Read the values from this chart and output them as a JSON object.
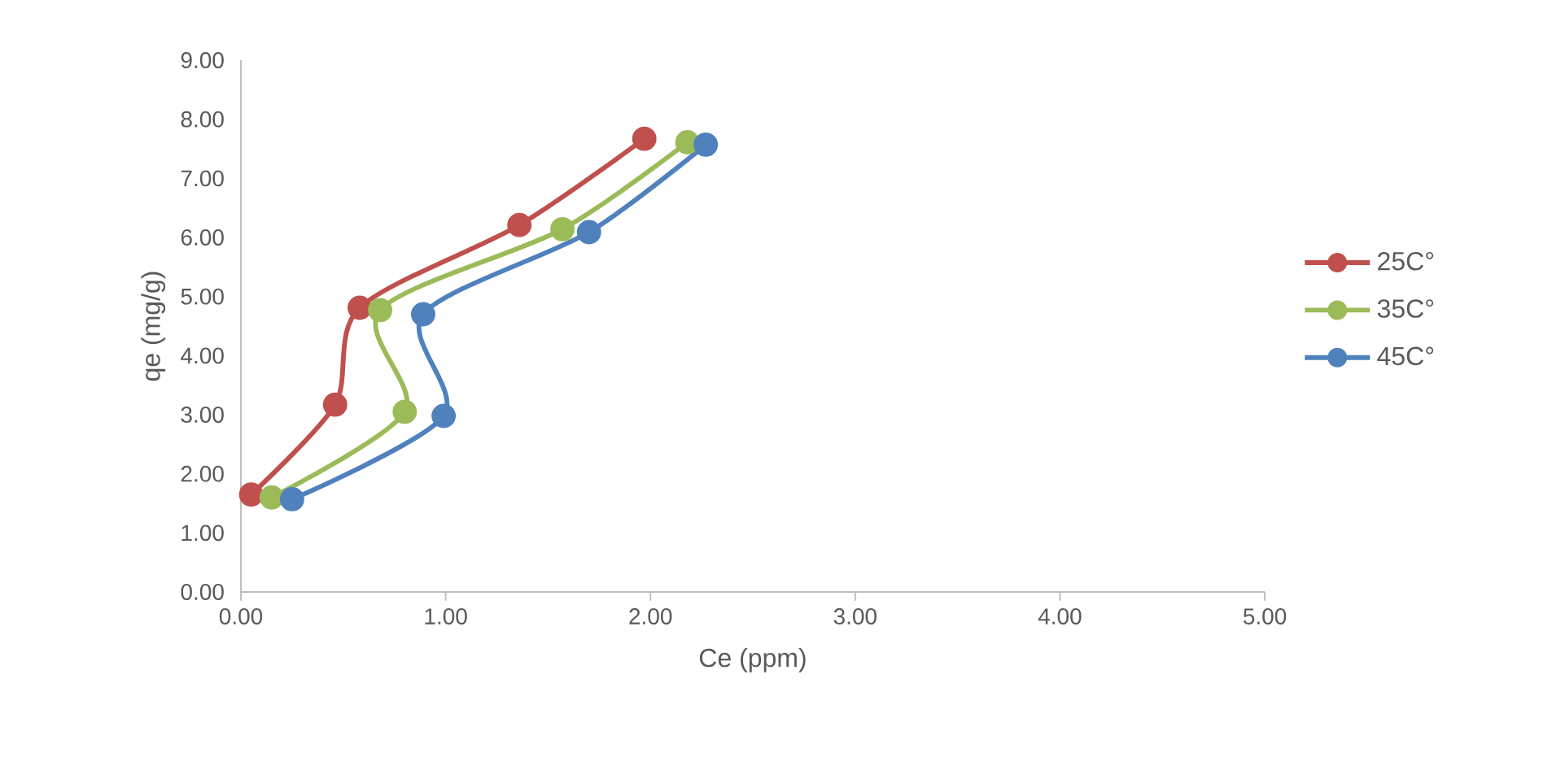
{
  "chart_data": {
    "type": "line",
    "xlabel": "Ce (ppm)",
    "ylabel": "qe (mg/g)",
    "series": [
      {
        "name": "25C°",
        "color": "#c0504d",
        "x": [
          0.05,
          0.46,
          0.58,
          1.36,
          1.97
        ],
        "values": [
          1.65,
          3.17,
          4.81,
          6.21,
          7.67
        ]
      },
      {
        "name": "35C°",
        "color": "#9bbb59",
        "x": [
          0.15,
          0.8,
          0.68,
          1.57,
          2.18
        ],
        "values": [
          1.6,
          3.05,
          4.77,
          6.14,
          7.61
        ]
      },
      {
        "name": "45C°",
        "color": "#4f81bd",
        "x": [
          0.25,
          0.99,
          0.89,
          1.7,
          2.27
        ],
        "values": [
          1.57,
          2.98,
          4.7,
          6.09,
          7.57
        ]
      }
    ],
    "xlim": [
      0,
      5
    ],
    "ylim": [
      0,
      9
    ],
    "xticks": [
      {
        "value": 0,
        "label": "0.00"
      },
      {
        "value": 1,
        "label": "1.00"
      },
      {
        "value": 2,
        "label": "2.00"
      },
      {
        "value": 3,
        "label": "3.00"
      },
      {
        "value": 4,
        "label": "4.00"
      },
      {
        "value": 5,
        "label": "5.00"
      }
    ],
    "yticks": [
      {
        "value": 0,
        "label": "0.00"
      },
      {
        "value": 1,
        "label": "1.00"
      },
      {
        "value": 2,
        "label": "2.00"
      },
      {
        "value": 3,
        "label": "3.00"
      },
      {
        "value": 4,
        "label": "4.00"
      },
      {
        "value": 5,
        "label": "5.00"
      },
      {
        "value": 6,
        "label": "6.00"
      },
      {
        "value": 7,
        "label": "7.00"
      },
      {
        "value": 8,
        "label": "8.00"
      },
      {
        "value": 9,
        "label": "9.00"
      }
    ],
    "grid": false,
    "legend": "right",
    "marker": "circle",
    "line_style": "solid"
  }
}
